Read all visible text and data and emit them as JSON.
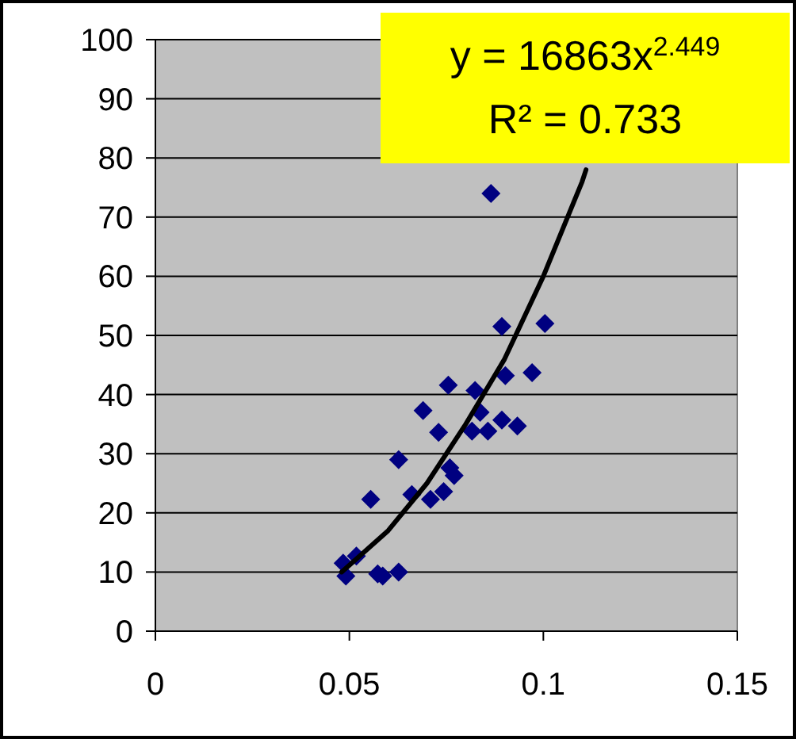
{
  "chart_data": {
    "type": "scatter",
    "xlim": [
      0,
      0.15
    ],
    "ylim": [
      0,
      100
    ],
    "xticks": [
      0,
      0.05,
      0.1,
      0.15
    ],
    "yticks": [
      0,
      10,
      20,
      30,
      40,
      50,
      60,
      70,
      80,
      90,
      100
    ],
    "grid": "y",
    "marker": "diamond",
    "annotations": [
      "y = 16863x$^{2.449}$",
      "R² = 0.733"
    ],
    "series": [
      {
        "color": "#000080",
        "x": [
          0.0865,
          0.0893,
          0.1004,
          0.0971,
          0.0902,
          0.0755,
          0.0824,
          0.069,
          0.0837,
          0.0893,
          0.0933,
          0.0857,
          0.0816,
          0.073,
          0.0627,
          0.0759,
          0.077,
          0.0743,
          0.0709,
          0.0661,
          0.0555,
          0.0484,
          0.0518,
          0.0491,
          0.0573,
          0.0586,
          0.0627
        ],
        "values": [
          74,
          51.5,
          52,
          43.7,
          43.2,
          41.6,
          40.7,
          37.3,
          37,
          35.7,
          34.7,
          33.8,
          33.8,
          33.6,
          29,
          27.6,
          26.3,
          23.6,
          22.3,
          23.1,
          22.3,
          11.5,
          12.7,
          9.3,
          9.7,
          9.3,
          10
        ]
      },
      {
        "type": "line",
        "color": "#000000",
        "marker": "none",
        "x": [
          0.048,
          0.06,
          0.07,
          0.08,
          0.09,
          0.1,
          0.11,
          0.111
        ],
        "values": [
          10,
          17,
          25,
          35,
          46,
          60,
          76,
          78
        ]
      }
    ]
  }
}
